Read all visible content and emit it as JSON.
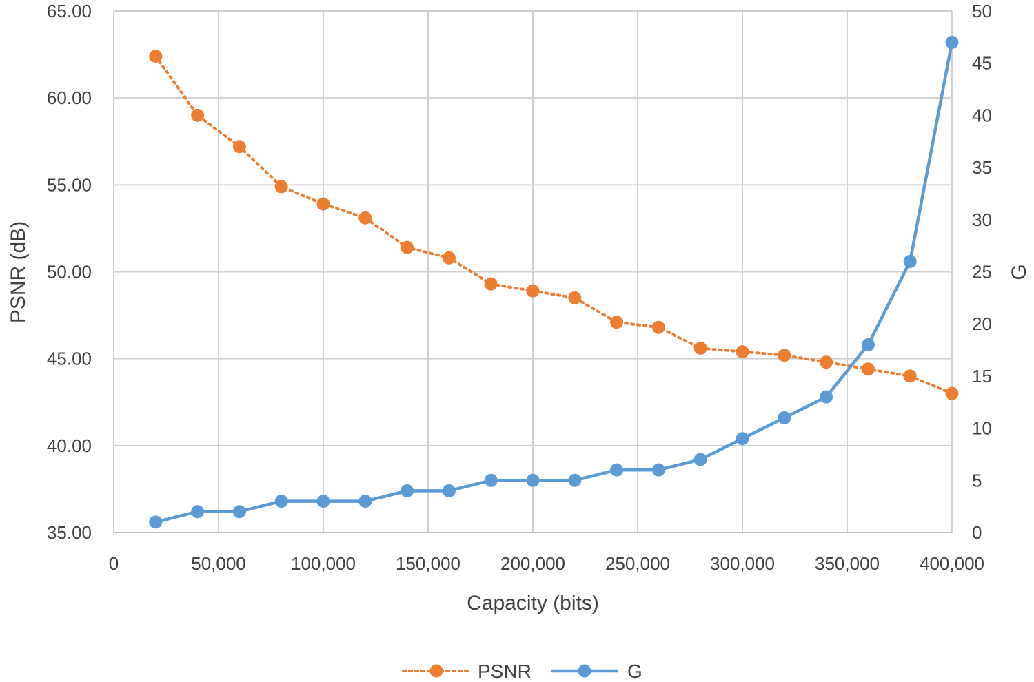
{
  "chart_data": {
    "type": "line",
    "title": "",
    "xlabel": "Capacity (bits)",
    "ylabel": "PSNR (dB)",
    "y2label": "G",
    "xlim": [
      0,
      400000
    ],
    "ylim": [
      35,
      65
    ],
    "y2lim": [
      0,
      50
    ],
    "x_ticks": [
      0,
      50000,
      100000,
      150000,
      200000,
      250000,
      300000,
      350000,
      400000
    ],
    "x_tick_labels": [
      "0",
      "50,000",
      "100,000",
      "150,000",
      "200,000",
      "250,000",
      "300,000",
      "350,000",
      "400,000"
    ],
    "y_ticks": [
      35,
      40,
      45,
      50,
      55,
      60,
      65
    ],
    "y_tick_labels": [
      "35.00",
      "40.00",
      "45.00",
      "50.00",
      "55.00",
      "60.00",
      "65.00"
    ],
    "y2_ticks": [
      0,
      5,
      10,
      15,
      20,
      25,
      30,
      35,
      40,
      45,
      50
    ],
    "y2_tick_labels": [
      "0",
      "5",
      "10",
      "15",
      "20",
      "25",
      "30",
      "35",
      "40",
      "45",
      "50"
    ],
    "grid": true,
    "legend_position": "bottom-center",
    "x": [
      20000,
      40000,
      60000,
      80000,
      100000,
      120000,
      140000,
      160000,
      180000,
      200000,
      220000,
      240000,
      260000,
      280000,
      300000,
      320000,
      340000,
      360000,
      380000,
      400000
    ],
    "series": [
      {
        "name": "PSNR",
        "axis": "left",
        "color": "#ED7D31",
        "line_style": "dotted",
        "values": [
          62.4,
          59.0,
          57.2,
          54.9,
          53.9,
          53.1,
          51.4,
          50.8,
          49.3,
          48.9,
          48.5,
          47.1,
          46.8,
          45.6,
          45.4,
          45.2,
          44.8,
          44.4,
          44.0,
          43.0
        ]
      },
      {
        "name": "G",
        "axis": "right",
        "color": "#5B9BD5",
        "line_style": "solid",
        "values": [
          1,
          2,
          2,
          3,
          3,
          3,
          4,
          4,
          5,
          5,
          5,
          6,
          6,
          7,
          9,
          11,
          13,
          18,
          26,
          47
        ]
      }
    ]
  }
}
